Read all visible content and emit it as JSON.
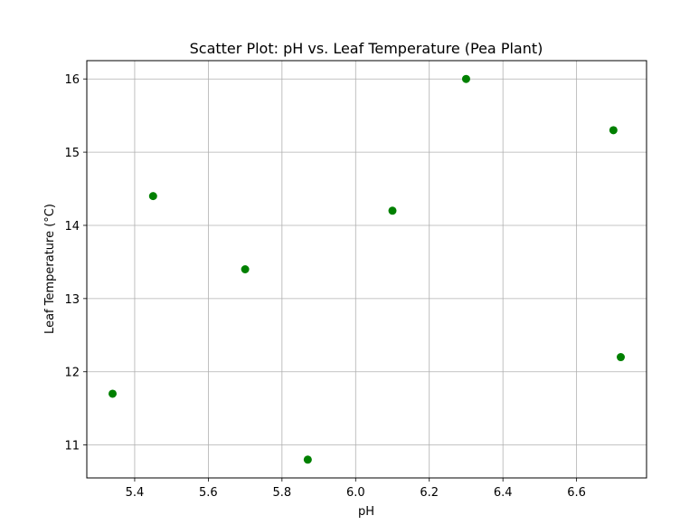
{
  "chart_data": {
    "type": "scatter",
    "title": "Scatter Plot: pH vs. Leaf Temperature (Pea Plant)",
    "xlabel": "pH",
    "ylabel": "Leaf Temperature (°C)",
    "xlim": [
      5.27,
      6.79
    ],
    "ylim": [
      10.55,
      16.25
    ],
    "x_ticks": [
      5.4,
      5.6,
      5.8,
      6.0,
      6.2,
      6.4,
      6.6
    ],
    "x_tick_labels": [
      "5.4",
      "5.6",
      "5.8",
      "6.0",
      "6.2",
      "6.4",
      "6.6"
    ],
    "y_ticks": [
      11,
      12,
      13,
      14,
      15,
      16
    ],
    "y_tick_labels": [
      "11",
      "12",
      "13",
      "14",
      "15",
      "16"
    ],
    "grid": true,
    "marker_color": "#008000",
    "points": [
      {
        "x": 5.34,
        "y": 11.7
      },
      {
        "x": 5.45,
        "y": 14.4
      },
      {
        "x": 5.7,
        "y": 13.4
      },
      {
        "x": 5.87,
        "y": 10.8
      },
      {
        "x": 6.1,
        "y": 14.2
      },
      {
        "x": 6.3,
        "y": 16.0
      },
      {
        "x": 6.7,
        "y": 15.3
      },
      {
        "x": 6.72,
        "y": 12.2
      }
    ]
  }
}
